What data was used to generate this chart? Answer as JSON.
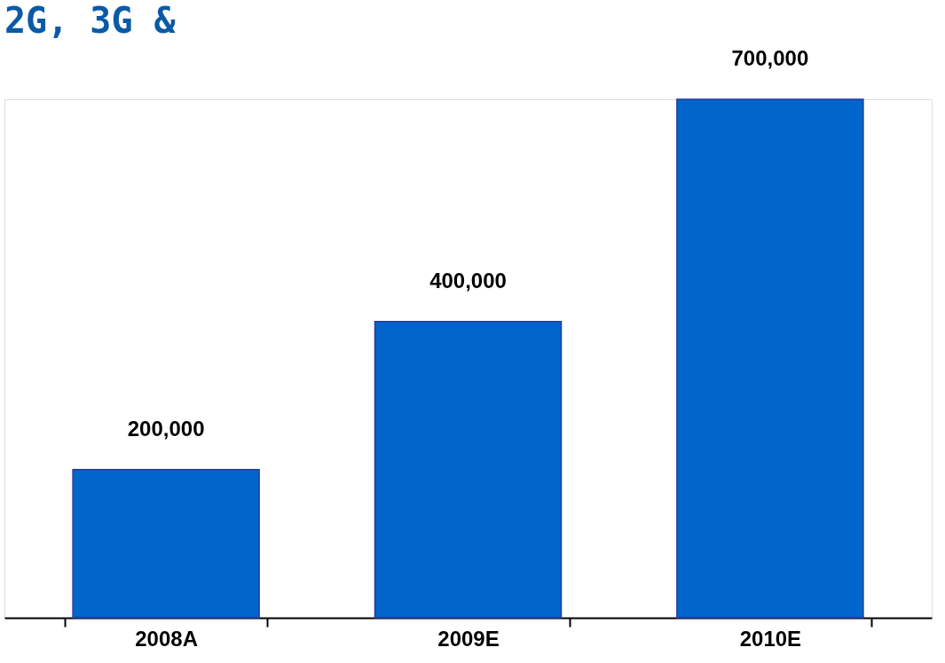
{
  "chart_data": {
    "type": "bar",
    "title": "2G, 3G &",
    "categories": [
      "2008A",
      "2009E",
      "2010E"
    ],
    "values": [
      200000,
      400000,
      700000
    ],
    "value_labels": [
      "200,000",
      "400,000",
      "700,000"
    ],
    "color": "#0066cc"
  }
}
